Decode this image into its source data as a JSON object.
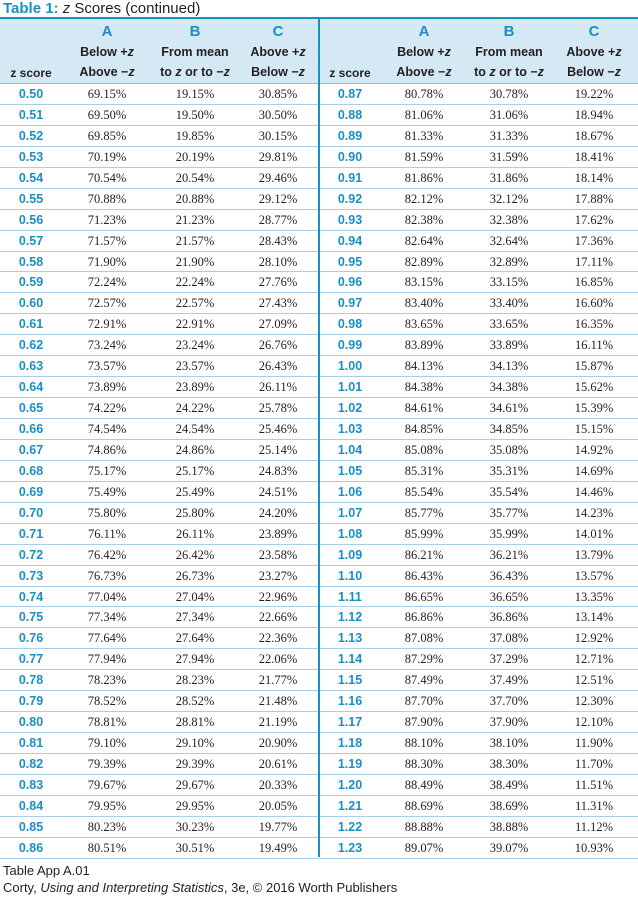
{
  "title": {
    "label": "Table 1:",
    "z": "z",
    "rest": " Scores  (continued)"
  },
  "header": {
    "z_score": "z score",
    "columns": [
      {
        "letter": "A",
        "line1_pre": "Below +",
        "line1_var": "z",
        "line2_pre": "Above −",
        "line2_var": "z"
      },
      {
        "letter": "B",
        "line1_pre": "From mean",
        "line1_var": "",
        "line2_pre": "to ",
        "line2_var": "z",
        "line2_post": " or to −",
        "line2_var2": "z"
      },
      {
        "letter": "C",
        "line1_pre": "Above +",
        "line1_var": "z",
        "line2_pre": "Below −",
        "line2_var": "z"
      }
    ]
  },
  "left_rows": [
    [
      "0.50",
      "69.15%",
      "19.15%",
      "30.85%"
    ],
    [
      "0.51",
      "69.50%",
      "19.50%",
      "30.50%"
    ],
    [
      "0.52",
      "69.85%",
      "19.85%",
      "30.15%"
    ],
    [
      "0.53",
      "70.19%",
      "20.19%",
      "29.81%"
    ],
    [
      "0.54",
      "70.54%",
      "20.54%",
      "29.46%"
    ],
    [
      "0.55",
      "70.88%",
      "20.88%",
      "29.12%"
    ],
    [
      "0.56",
      "71.23%",
      "21.23%",
      "28.77%"
    ],
    [
      "0.57",
      "71.57%",
      "21.57%",
      "28.43%"
    ],
    [
      "0.58",
      "71.90%",
      "21.90%",
      "28.10%"
    ],
    [
      "0.59",
      "72.24%",
      "22.24%",
      "27.76%"
    ],
    [
      "0.60",
      "72.57%",
      "22.57%",
      "27.43%"
    ],
    [
      "0.61",
      "72.91%",
      "22.91%",
      "27.09%"
    ],
    [
      "0.62",
      "73.24%",
      "23.24%",
      "26.76%"
    ],
    [
      "0.63",
      "73.57%",
      "23.57%",
      "26.43%"
    ],
    [
      "0.64",
      "73.89%",
      "23.89%",
      "26.11%"
    ],
    [
      "0.65",
      "74.22%",
      "24.22%",
      "25.78%"
    ],
    [
      "0.66",
      "74.54%",
      "24.54%",
      "25.46%"
    ],
    [
      "0.67",
      "74.86%",
      "24.86%",
      "25.14%"
    ],
    [
      "0.68",
      "75.17%",
      "25.17%",
      "24.83%"
    ],
    [
      "0.69",
      "75.49%",
      "25.49%",
      "24.51%"
    ],
    [
      "0.70",
      "75.80%",
      "25.80%",
      "24.20%"
    ],
    [
      "0.71",
      "76.11%",
      "26.11%",
      "23.89%"
    ],
    [
      "0.72",
      "76.42%",
      "26.42%",
      "23.58%"
    ],
    [
      "0.73",
      "76.73%",
      "26.73%",
      "23.27%"
    ],
    [
      "0.74",
      "77.04%",
      "27.04%",
      "22.96%"
    ],
    [
      "0.75",
      "77.34%",
      "27.34%",
      "22.66%"
    ],
    [
      "0.76",
      "77.64%",
      "27.64%",
      "22.36%"
    ],
    [
      "0.77",
      "77.94%",
      "27.94%",
      "22.06%"
    ],
    [
      "0.78",
      "78.23%",
      "28.23%",
      "21.77%"
    ],
    [
      "0.79",
      "78.52%",
      "28.52%",
      "21.48%"
    ],
    [
      "0.80",
      "78.81%",
      "28.81%",
      "21.19%"
    ],
    [
      "0.81",
      "79.10%",
      "29.10%",
      "20.90%"
    ],
    [
      "0.82",
      "79.39%",
      "29.39%",
      "20.61%"
    ],
    [
      "0.83",
      "79.67%",
      "29.67%",
      "20.33%"
    ],
    [
      "0.84",
      "79.95%",
      "29.95%",
      "20.05%"
    ],
    [
      "0.85",
      "80.23%",
      "30.23%",
      "19.77%"
    ],
    [
      "0.86",
      "80.51%",
      "30.51%",
      "19.49%"
    ]
  ],
  "right_rows": [
    [
      "0.87",
      "80.78%",
      "30.78%",
      "19.22%"
    ],
    [
      "0.88",
      "81.06%",
      "31.06%",
      "18.94%"
    ],
    [
      "0.89",
      "81.33%",
      "31.33%",
      "18.67%"
    ],
    [
      "0.90",
      "81.59%",
      "31.59%",
      "18.41%"
    ],
    [
      "0.91",
      "81.86%",
      "31.86%",
      "18.14%"
    ],
    [
      "0.92",
      "82.12%",
      "32.12%",
      "17.88%"
    ],
    [
      "0.93",
      "82.38%",
      "32.38%",
      "17.62%"
    ],
    [
      "0.94",
      "82.64%",
      "32.64%",
      "17.36%"
    ],
    [
      "0.95",
      "82.89%",
      "32.89%",
      "17.11%"
    ],
    [
      "0.96",
      "83.15%",
      "33.15%",
      "16.85%"
    ],
    [
      "0.97",
      "83.40%",
      "33.40%",
      "16.60%"
    ],
    [
      "0.98",
      "83.65%",
      "33.65%",
      "16.35%"
    ],
    [
      "0.99",
      "83.89%",
      "33.89%",
      "16.11%"
    ],
    [
      "1.00",
      "84.13%",
      "34.13%",
      "15.87%"
    ],
    [
      "1.01",
      "84.38%",
      "34.38%",
      "15.62%"
    ],
    [
      "1.02",
      "84.61%",
      "34.61%",
      "15.39%"
    ],
    [
      "1.03",
      "84.85%",
      "34.85%",
      "15.15%"
    ],
    [
      "1.04",
      "85.08%",
      "35.08%",
      "14.92%"
    ],
    [
      "1.05",
      "85.31%",
      "35.31%",
      "14.69%"
    ],
    [
      "1.06",
      "85.54%",
      "35.54%",
      "14.46%"
    ],
    [
      "1.07",
      "85.77%",
      "35.77%",
      "14.23%"
    ],
    [
      "1.08",
      "85.99%",
      "35.99%",
      "14.01%"
    ],
    [
      "1.09",
      "86.21%",
      "36.21%",
      "13.79%"
    ],
    [
      "1.10",
      "86.43%",
      "36.43%",
      "13.57%"
    ],
    [
      "1.11",
      "86.65%",
      "36.65%",
      "13.35%"
    ],
    [
      "1.12",
      "86.86%",
      "36.86%",
      "13.14%"
    ],
    [
      "1.13",
      "87.08%",
      "37.08%",
      "12.92%"
    ],
    [
      "1.14",
      "87.29%",
      "37.29%",
      "12.71%"
    ],
    [
      "1.15",
      "87.49%",
      "37.49%",
      "12.51%"
    ],
    [
      "1.16",
      "87.70%",
      "37.70%",
      "12.30%"
    ],
    [
      "1.17",
      "87.90%",
      "37.90%",
      "12.10%"
    ],
    [
      "1.18",
      "88.10%",
      "38.10%",
      "11.90%"
    ],
    [
      "1.19",
      "88.30%",
      "38.30%",
      "11.70%"
    ],
    [
      "1.20",
      "88.49%",
      "38.49%",
      "11.51%"
    ],
    [
      "1.21",
      "88.69%",
      "38.69%",
      "11.31%"
    ],
    [
      "1.22",
      "88.88%",
      "38.88%",
      "11.12%"
    ],
    [
      "1.23",
      "89.07%",
      "39.07%",
      "10.93%"
    ]
  ],
  "footer": {
    "line1": "Table App A.01",
    "line2_pre": "Corty, ",
    "line2_italic": "Using and Interpreting Statistics",
    "line2_post": ", 3e, © 2016 Worth Publishers"
  },
  "colors": {
    "accent": "#1a8fc3",
    "header_bg": "#d5e9f5",
    "rule": "#a9cfe8"
  }
}
